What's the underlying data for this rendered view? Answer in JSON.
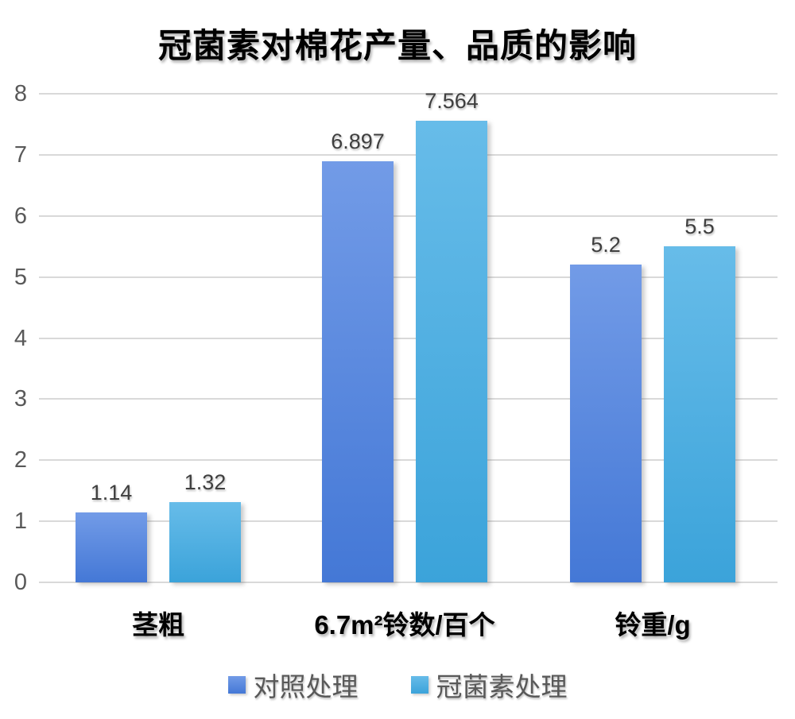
{
  "chart_data": {
    "type": "bar",
    "title": "冠菌素对棉花产量、品质的影响",
    "categories": [
      "茎粗",
      "6.7m²铃数/百个",
      "铃重/g"
    ],
    "series": [
      {
        "name": "对照处理",
        "values": [
          1.14,
          6.897,
          5.2
        ],
        "color_top": "#729BE7",
        "color_bottom": "#4478D6"
      },
      {
        "name": "冠菌素处理",
        "values": [
          1.32,
          7.564,
          5.5
        ],
        "color_top": "#67BCE9",
        "color_bottom": "#3BA3DA"
      }
    ],
    "xlabel": "",
    "ylabel": "",
    "ylim": [
      0,
      8
    ],
    "yticks": [
      0,
      1,
      2,
      3,
      4,
      5,
      6,
      7,
      8
    ],
    "grid": true,
    "legend_position": "bottom"
  },
  "colors": {
    "background": "#FFFFFF",
    "gridline": "#D9D9D9",
    "tick_label": "#595959",
    "value_label": "#3F3F3F",
    "category_label": "#000000",
    "legend_label": "#595959",
    "title": "#000000"
  }
}
